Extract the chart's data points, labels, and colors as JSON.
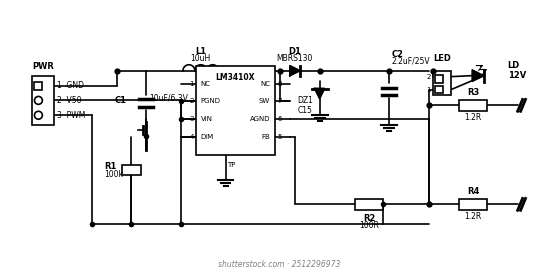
{
  "bg_color": "#ffffff",
  "line_color": "#000000",
  "line_width": 1.2,
  "thin_lw": 0.8,
  "dot_size": 4,
  "font_size": 6,
  "title_font_size": 7,
  "watermark": "shutterstock.com · 2512296973",
  "component_labels": {
    "L1": "L1\n10uH",
    "D1": "D1\nMBRS130",
    "C2": "C2\n2.2uF/25V",
    "LED": "LED",
    "LD": "LD\n12V",
    "DZ1_C15": "DZ1\nC15",
    "C1": "C1",
    "C1_val": "10uF/6.3V",
    "IC": "LM3410X",
    "pin1": "NC",
    "pin2": "PGND",
    "pin3": "VIN",
    "pin4": "DIM",
    "pin5": "FB",
    "pin6": "AGND",
    "pin7": "SW",
    "pin8": "NC",
    "pin_tp": "TP",
    "R1": "R1",
    "R1_val": "100k",
    "R2": "R2",
    "R2_val": "100R",
    "R3": "R3",
    "R3_val": "1.2R",
    "R4": "R4",
    "R4_val": "1.2R",
    "PWR": "PWR",
    "pin_gnd": "1  GND",
    "pin_v50": "2  V50",
    "pin_pwm": "3  PWM"
  }
}
